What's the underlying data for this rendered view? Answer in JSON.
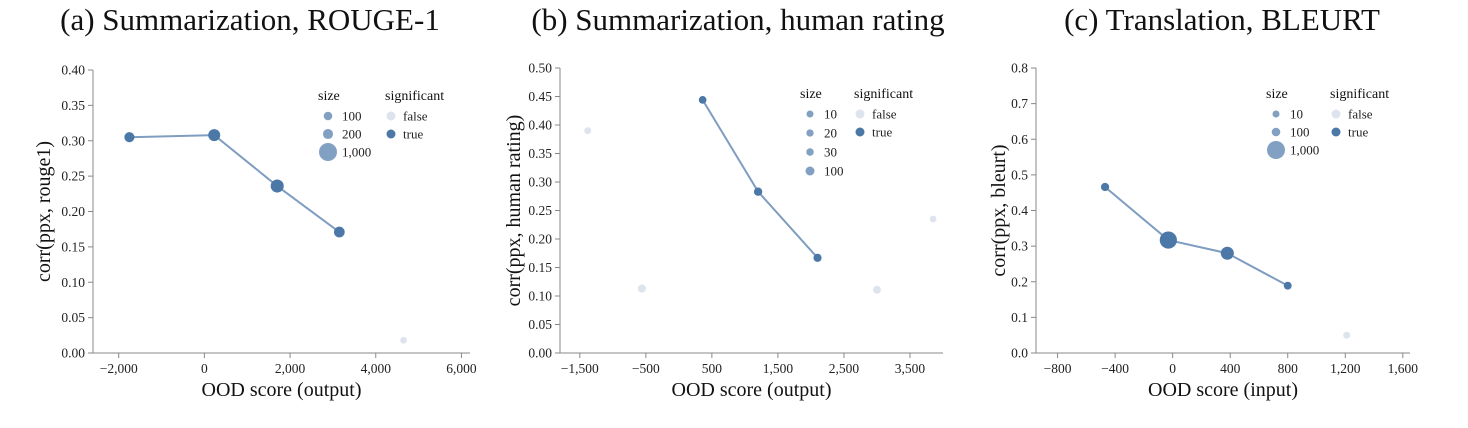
{
  "colors": {
    "true": "#4c78a8",
    "false": "#dde4ee",
    "line": "#7f9dc0"
  },
  "chart_data": [
    {
      "type": "scatter",
      "title": "(a) Summarization, ROUGE-1",
      "xlabel": "OOD score (output)",
      "ylabel": "corr(ppx, rouge1)",
      "xlim": [
        -2600,
        6200
      ],
      "ylim": [
        0,
        0.4
      ],
      "xticks": [
        -2000,
        0,
        2000,
        4000,
        6000
      ],
      "xtick_labels": [
        "−2,000",
        "0",
        "2,000",
        "4,000",
        "6,000"
      ],
      "yticks": [
        0,
        0.05,
        0.1,
        0.15,
        0.2,
        0.25,
        0.3,
        0.35,
        0.4
      ],
      "ytick_labels": [
        "0.00",
        "0.05",
        "0.10",
        "0.15",
        "0.20",
        "0.25",
        "0.30",
        "0.35",
        "0.40"
      ],
      "legend_size": {
        "title": "size",
        "items": [
          {
            "label": "100",
            "size": 100
          },
          {
            "label": "200",
            "size": 200
          },
          {
            "label": "1,000",
            "size": 1000
          }
        ]
      },
      "legend_significant": {
        "title": "significant",
        "items": [
          "false",
          "true"
        ]
      },
      "points": [
        {
          "x": -1750,
          "y": 0.305,
          "size": 200,
          "significant": true
        },
        {
          "x": 230,
          "y": 0.308,
          "size": 350,
          "significant": true
        },
        {
          "x": 1700,
          "y": 0.236,
          "size": 450,
          "significant": true
        },
        {
          "x": 3150,
          "y": 0.171,
          "size": 250,
          "significant": true
        },
        {
          "x": 4650,
          "y": 0.018,
          "size": 2,
          "significant": false
        }
      ],
      "line_order": [
        0,
        1,
        2,
        3
      ]
    },
    {
      "type": "scatter",
      "title": "(b) Summarization, human rating",
      "xlabel": "OOD score (output)",
      "ylabel": "corr(ppx, human rating)",
      "xlim": [
        -1800,
        4000
      ],
      "ylim": [
        0,
        0.5
      ],
      "xticks": [
        -1500,
        -500,
        500,
        1500,
        2500,
        3500
      ],
      "xtick_labels": [
        "−1,500",
        "−500",
        "500",
        "1,500",
        "2,500",
        "3,500"
      ],
      "yticks": [
        0,
        0.05,
        0.1,
        0.15,
        0.2,
        0.25,
        0.3,
        0.35,
        0.4,
        0.45,
        0.5
      ],
      "ytick_labels": [
        "0.00",
        "0.05",
        "0.10",
        "0.15",
        "0.20",
        "0.25",
        "0.30",
        "0.35",
        "0.40",
        "0.45",
        "0.50"
      ],
      "legend_size": {
        "title": "size",
        "items": [
          {
            "label": "10",
            "size": 10
          },
          {
            "label": "20",
            "size": 20
          },
          {
            "label": "30",
            "size": 30
          },
          {
            "label": "100",
            "size": 100
          }
        ]
      },
      "legend_significant": {
        "title": "significant",
        "items": [
          "false",
          "true"
        ]
      },
      "points": [
        {
          "x": -1380,
          "y": 0.39,
          "size": 10,
          "significant": false
        },
        {
          "x": -560,
          "y": 0.113,
          "size": 55,
          "significant": false
        },
        {
          "x": 360,
          "y": 0.444,
          "size": 40,
          "significant": true
        },
        {
          "x": 1200,
          "y": 0.283,
          "size": 70,
          "significant": true
        },
        {
          "x": 2100,
          "y": 0.167,
          "size": 60,
          "significant": true
        },
        {
          "x": 3000,
          "y": 0.111,
          "size": 50,
          "significant": false
        },
        {
          "x": 3850,
          "y": 0.235,
          "size": 1,
          "significant": false
        }
      ],
      "line_order": [
        2,
        3,
        4
      ]
    },
    {
      "type": "scatter",
      "title": "(c) Translation, BLEURT",
      "xlabel": "OOD score (input)",
      "ylabel": "corr(ppx, bleurt)",
      "xlim": [
        -950,
        1650
      ],
      "ylim": [
        0,
        0.8
      ],
      "xticks": [
        -800,
        -400,
        0,
        400,
        800,
        1200,
        1600
      ],
      "xtick_labels": [
        "−800",
        "−400",
        "0",
        "400",
        "800",
        "1,200",
        "1,600"
      ],
      "yticks": [
        0,
        0.1,
        0.2,
        0.3,
        0.4,
        0.5,
        0.6,
        0.7,
        0.8
      ],
      "ytick_labels": [
        "0.0",
        "0.1",
        "0.2",
        "0.3",
        "0.4",
        "0.5",
        "0.6",
        "0.7",
        "0.8"
      ],
      "legend_size": {
        "title": "size",
        "items": [
          {
            "label": "10",
            "size": 10
          },
          {
            "label": "100",
            "size": 100
          },
          {
            "label": "1,000",
            "size": 1000
          }
        ]
      },
      "legend_significant": {
        "title": "significant",
        "items": [
          "false",
          "true"
        ]
      },
      "points": [
        {
          "x": -470,
          "y": 0.466,
          "size": 80,
          "significant": true
        },
        {
          "x": -30,
          "y": 0.317,
          "size": 900,
          "significant": true
        },
        {
          "x": 380,
          "y": 0.28,
          "size": 450,
          "significant": true
        },
        {
          "x": 800,
          "y": 0.189,
          "size": 60,
          "significant": true
        },
        {
          "x": 1210,
          "y": 0.05,
          "size": 10,
          "significant": false
        }
      ],
      "line_order": [
        0,
        1,
        2,
        3
      ]
    }
  ]
}
